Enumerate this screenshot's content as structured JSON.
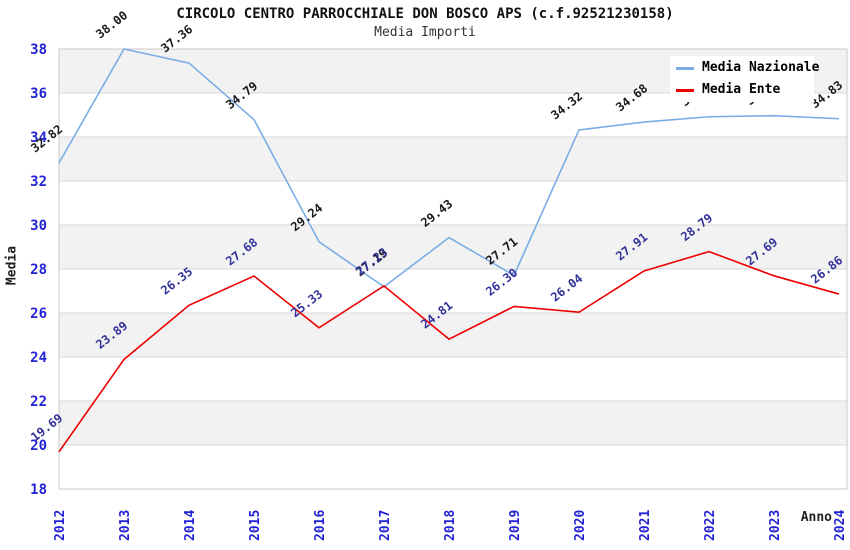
{
  "header": {
    "title": "CIRCOLO CENTRO PARROCCHIALE DON BOSCO APS (c.f.92521230158)",
    "subtitle": "Media Importi"
  },
  "chart_data": {
    "type": "line",
    "title": "CIRCOLO CENTRO PARROCCHIALE DON BOSCO APS (c.f.92521230158)",
    "subtitle": "Media Importi",
    "xlabel": "Anno",
    "ylabel": "Media",
    "x": [
      2012,
      2013,
      2014,
      2015,
      2016,
      2017,
      2018,
      2019,
      2020,
      2021,
      2022,
      2023,
      2024
    ],
    "series": [
      {
        "name": "Media Nazionale",
        "color": "#7aade6",
        "label_color": "#1a1a1a",
        "values": [
          32.82,
          38.0,
          37.36,
          34.79,
          29.24,
          27.19,
          29.43,
          27.71,
          34.32,
          34.68,
          34.92,
          34.97,
          34.83
        ]
      },
      {
        "name": "Media Ente",
        "color": "#ee0000",
        "label_color": "#32329b",
        "values": [
          19.69,
          23.89,
          26.35,
          27.68,
          25.33,
          27.23,
          24.81,
          26.3,
          26.04,
          27.91,
          28.79,
          27.69,
          26.86
        ]
      }
    ],
    "ylim": [
      18,
      38
    ],
    "ytick_step": 2,
    "grid": true,
    "bands": true,
    "legend_position": "top-right",
    "label_decimals": 2
  },
  "axis": {
    "tick_color": "#2323d6",
    "grid_color": "#d8d8d8",
    "band_color": "#f2f2f2",
    "border_color": "#c8c8c8"
  },
  "legend": {
    "items": [
      {
        "label": "Media Nazionale",
        "color": "#7aade6"
      },
      {
        "label": "Media Ente",
        "color": "#ee0000"
      }
    ]
  }
}
